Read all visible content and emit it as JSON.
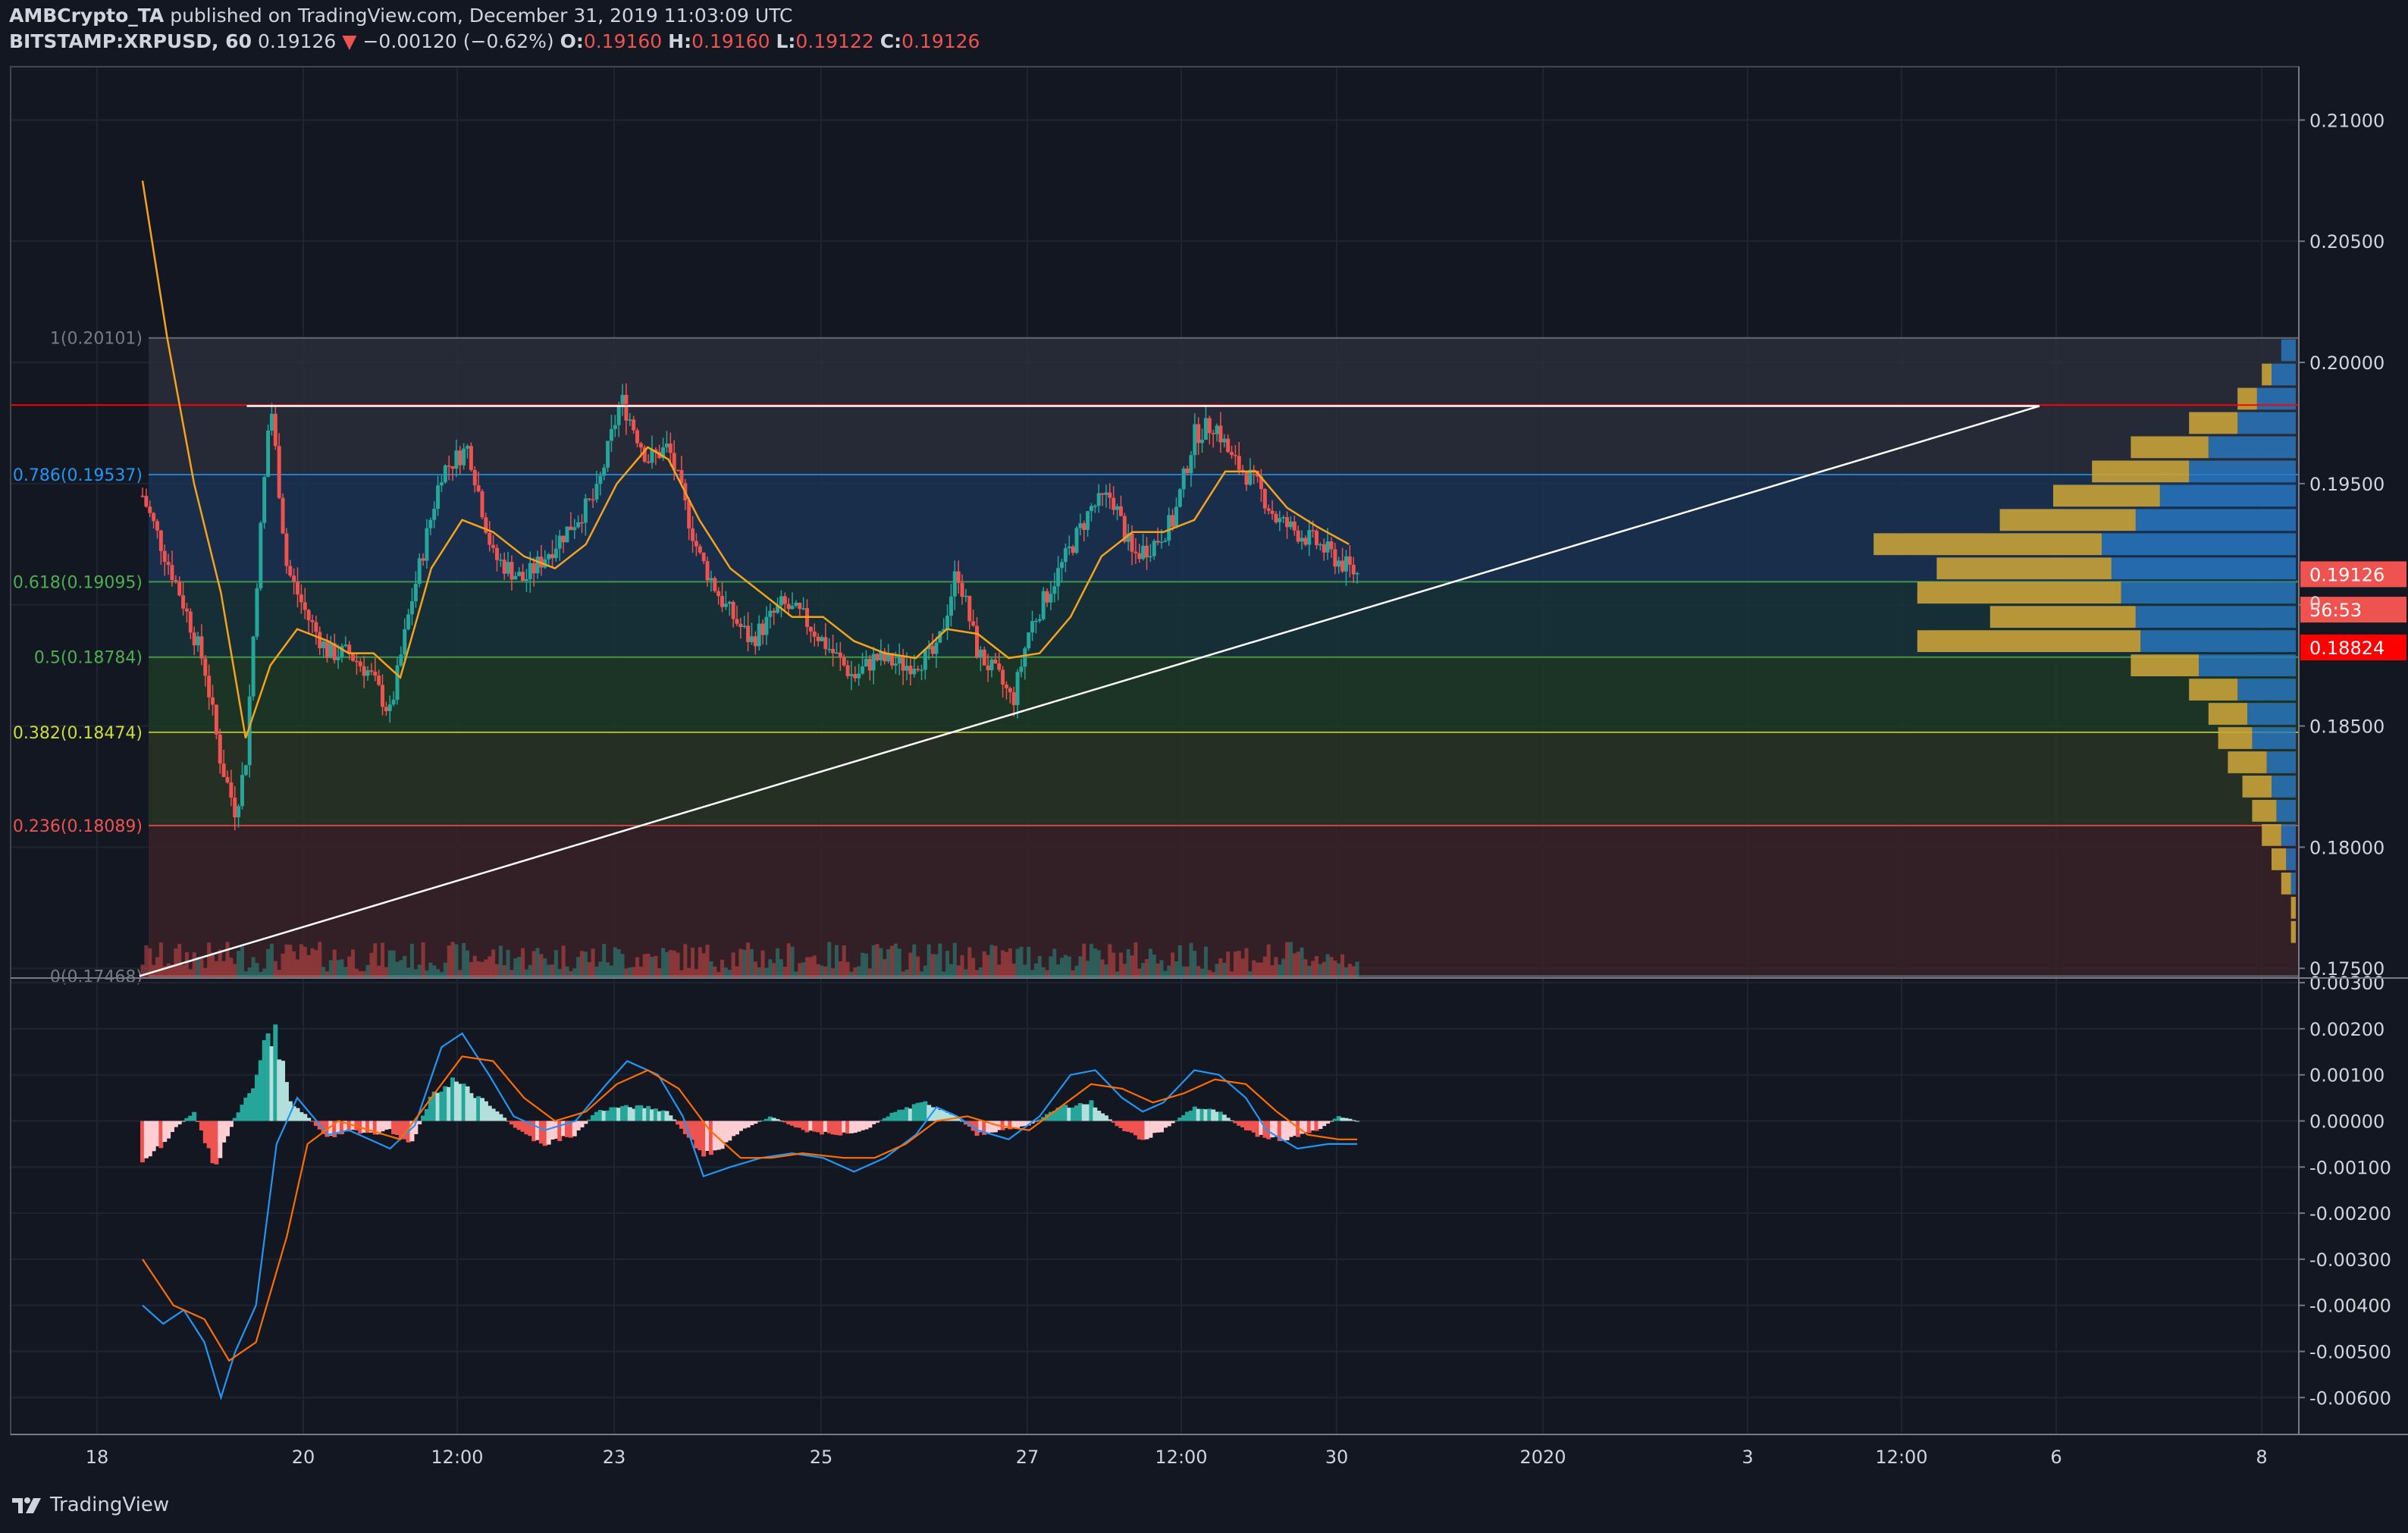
{
  "header": {
    "author": "AMBCrypto_TA",
    "published_text": "published on TradingView.com, December 31, 2019 11:03:09 UTC",
    "symbol": "BITSTAMP:XRPUSD, 60",
    "last": "0.19126",
    "change": "−0.00120 (−0.62%)",
    "o_label": "O:",
    "o_value": "0.19160",
    "h_label": "H:",
    "h_value": "0.19160",
    "l_label": "L:",
    "l_value": "0.19122",
    "c_label": "C:",
    "c_value": "0.19126"
  },
  "footer": {
    "logo_text": "TradingView"
  },
  "colors": {
    "background": "#131722",
    "up": "#26a69a",
    "down": "#ef5350",
    "ma": "#f7a21b",
    "macd": "#2196f3",
    "signal": "#ff6d00",
    "vp_up": "#2979c4",
    "vp_down": "#c8a23a",
    "trendline": "#ffffff"
  },
  "chart_data": [
    {
      "type": "candlestick",
      "symbol": "BITSTAMP:XRPUSD",
      "interval": "60",
      "x_tick_labels": [
        "18",
        "20",
        "12:00",
        "23",
        "25",
        "27",
        "12:00",
        "30",
        "2020",
        "3",
        "12:00",
        "6",
        "8"
      ],
      "y_tick_labels": [
        "0.21000",
        "0.20500",
        "0.20000",
        "0.19500",
        "0.19000",
        "0.18500",
        "0.18000",
        "0.17500"
      ],
      "ylim": [
        0.1746,
        0.2122
      ],
      "grid": true,
      "price_labels": [
        {
          "text": "0.19126",
          "value": 0.19126,
          "color": "#ef5350"
        },
        {
          "text": "56:53",
          "value": 0.1898,
          "color": "#ef5350"
        },
        {
          "text": "0.18824",
          "value": 0.18824,
          "color": "#ff0000"
        }
      ],
      "price_partial_label": "0.",
      "fib_levels": [
        {
          "ratio": "1",
          "value": 0.20101,
          "label": "1(0.20101)",
          "color": "#787b86"
        },
        {
          "ratio": "0.786",
          "value": 0.19537,
          "label": "0.786(0.19537)",
          "color": "#2196f3"
        },
        {
          "ratio": "0.618",
          "value": 0.19095,
          "label": "0.618(0.19095)",
          "color": "#4caf50"
        },
        {
          "ratio": "0.5",
          "value": 0.18784,
          "label": "0.5(0.18784)",
          "color": "#4caf50"
        },
        {
          "ratio": "0.382",
          "value": 0.18474,
          "label": "0.382(0.18474)",
          "color": "#cddc39"
        },
        {
          "ratio": "0.236",
          "value": 0.18089,
          "label": "0.236(0.18089)",
          "color": "#ef5350"
        },
        {
          "ratio": "0",
          "value": 0.17468,
          "label": "0(0.17468)",
          "color": "#787b86"
        }
      ],
      "horizontal_line": {
        "value": 0.19824,
        "color": "#ff0000"
      },
      "trendlines": [
        {
          "from": [
            0.0,
            0.17468
          ],
          "to": [
            5.89,
            0.1982
          ]
        },
        {
          "from": [
            0.52,
            0.1982
          ],
          "to": [
            5.89,
            0.1982
          ]
        }
      ],
      "close_path": [
        [
          0.0,
          0.1945
        ],
        [
          0.18,
          0.1905
        ],
        [
          0.3,
          0.1875
        ],
        [
          0.38,
          0.1835
        ],
        [
          0.45,
          0.1815
        ],
        [
          0.5,
          0.1835
        ],
        [
          0.55,
          0.1905
        ],
        [
          0.62,
          0.1985
        ],
        [
          0.7,
          0.1915
        ],
        [
          0.8,
          0.1895
        ],
        [
          0.9,
          0.188
        ],
        [
          1.0,
          0.188
        ],
        [
          1.1,
          0.1872
        ],
        [
          1.2,
          0.1855
        ],
        [
          1.3,
          0.19
        ],
        [
          1.45,
          0.1955
        ],
        [
          1.58,
          0.1965
        ],
        [
          1.7,
          0.192
        ],
        [
          1.85,
          0.191
        ],
        [
          2.0,
          0.1925
        ],
        [
          2.2,
          0.1945
        ],
        [
          2.32,
          0.1985
        ],
        [
          2.45,
          0.196
        ],
        [
          2.55,
          0.1965
        ],
        [
          2.7,
          0.192
        ],
        [
          2.82,
          0.19
        ],
        [
          2.95,
          0.1885
        ],
        [
          3.1,
          0.19
        ],
        [
          3.2,
          0.1895
        ],
        [
          3.3,
          0.1885
        ],
        [
          3.45,
          0.187
        ],
        [
          3.55,
          0.1878
        ],
        [
          3.7,
          0.1875
        ],
        [
          3.85,
          0.188
        ],
        [
          3.95,
          0.1915
        ],
        [
          4.05,
          0.188
        ],
        [
          4.15,
          0.187
        ],
        [
          4.22,
          0.186
        ],
        [
          4.3,
          0.189
        ],
        [
          4.45,
          0.1915
        ],
        [
          4.6,
          0.194
        ],
        [
          4.7,
          0.1945
        ],
        [
          4.8,
          0.192
        ],
        [
          4.9,
          0.1925
        ],
        [
          5.0,
          0.1935
        ],
        [
          5.1,
          0.197
        ],
        [
          5.2,
          0.1975
        ],
        [
          5.28,
          0.196
        ],
        [
          5.4,
          0.195
        ],
        [
          5.5,
          0.1935
        ],
        [
          5.6,
          0.193
        ],
        [
          5.7,
          0.1925
        ],
        [
          5.8,
          0.1918
        ],
        [
          5.89,
          0.19126
        ]
      ],
      "ma_path": [
        [
          0.0,
          0.2075
        ],
        [
          0.12,
          0.201
        ],
        [
          0.25,
          0.195
        ],
        [
          0.38,
          0.1905
        ],
        [
          0.5,
          0.1845
        ],
        [
          0.62,
          0.1875
        ],
        [
          0.75,
          0.189
        ],
        [
          0.9,
          0.1885
        ],
        [
          1.0,
          0.188
        ],
        [
          1.12,
          0.188
        ],
        [
          1.25,
          0.187
        ],
        [
          1.4,
          0.1915
        ],
        [
          1.55,
          0.1935
        ],
        [
          1.7,
          0.193
        ],
        [
          1.85,
          0.192
        ],
        [
          2.0,
          0.1915
        ],
        [
          2.15,
          0.1925
        ],
        [
          2.3,
          0.195
        ],
        [
          2.45,
          0.1965
        ],
        [
          2.55,
          0.196
        ],
        [
          2.7,
          0.1935
        ],
        [
          2.85,
          0.1915
        ],
        [
          3.0,
          0.1905
        ],
        [
          3.15,
          0.1895
        ],
        [
          3.3,
          0.1895
        ],
        [
          3.45,
          0.1885
        ],
        [
          3.6,
          0.188
        ],
        [
          3.75,
          0.1878
        ],
        [
          3.9,
          0.189
        ],
        [
          4.05,
          0.1888
        ],
        [
          4.2,
          0.1878
        ],
        [
          4.35,
          0.188
        ],
        [
          4.5,
          0.1895
        ],
        [
          4.65,
          0.192
        ],
        [
          4.8,
          0.193
        ],
        [
          4.95,
          0.193
        ],
        [
          5.1,
          0.1935
        ],
        [
          5.25,
          0.1955
        ],
        [
          5.4,
          0.1955
        ],
        [
          5.55,
          0.194
        ],
        [
          5.7,
          0.1932
        ],
        [
          5.85,
          0.1925
        ]
      ],
      "volume_profile": [
        {
          "price": 0.2005,
          "up": 0.03,
          "down": 0.0
        },
        {
          "price": 0.1995,
          "up": 0.05,
          "down": 0.02
        },
        {
          "price": 0.1985,
          "up": 0.08,
          "down": 0.04
        },
        {
          "price": 0.1975,
          "up": 0.12,
          "down": 0.1
        },
        {
          "price": 0.1965,
          "up": 0.18,
          "down": 0.16
        },
        {
          "price": 0.1955,
          "up": 0.22,
          "down": 0.2
        },
        {
          "price": 0.1945,
          "up": 0.28,
          "down": 0.22
        },
        {
          "price": 0.1935,
          "up": 0.33,
          "down": 0.28
        },
        {
          "price": 0.1925,
          "up": 0.4,
          "down": 0.47
        },
        {
          "price": 0.1915,
          "up": 0.38,
          "down": 0.36
        },
        {
          "price": 0.1905,
          "up": 0.36,
          "down": 0.42
        },
        {
          "price": 0.1895,
          "up": 0.33,
          "down": 0.3
        },
        {
          "price": 0.1885,
          "up": 0.32,
          "down": 0.46
        },
        {
          "price": 0.1875,
          "up": 0.2,
          "down": 0.14
        },
        {
          "price": 0.1865,
          "up": 0.12,
          "down": 0.1
        },
        {
          "price": 0.1855,
          "up": 0.1,
          "down": 0.08
        },
        {
          "price": 0.1845,
          "up": 0.09,
          "down": 0.07
        },
        {
          "price": 0.1835,
          "up": 0.06,
          "down": 0.08
        },
        {
          "price": 0.1825,
          "up": 0.05,
          "down": 0.06
        },
        {
          "price": 0.1815,
          "up": 0.04,
          "down": 0.05
        },
        {
          "price": 0.1805,
          "up": 0.03,
          "down": 0.04
        },
        {
          "price": 0.1795,
          "up": 0.02,
          "down": 0.03
        },
        {
          "price": 0.1785,
          "up": 0.01,
          "down": 0.02
        },
        {
          "price": 0.1775,
          "up": 0.0,
          "down": 0.01
        },
        {
          "price": 0.1765,
          "up": 0.0,
          "down": 0.01
        }
      ]
    },
    {
      "type": "macd",
      "y_tick_labels": [
        "0.00300",
        "0.00200",
        "0.00100",
        "0.00000",
        "-0.00100",
        "-0.00200",
        "-0.00300",
        "-0.00400",
        "-0.00500",
        "-0.00600"
      ],
      "ylim": [
        -0.0068,
        0.0031
      ],
      "macd_path": [
        [
          0.0,
          -0.004
        ],
        [
          0.1,
          -0.0044
        ],
        [
          0.2,
          -0.0041
        ],
        [
          0.3,
          -0.0048
        ],
        [
          0.38,
          -0.006
        ],
        [
          0.45,
          -0.005
        ],
        [
          0.55,
          -0.004
        ],
        [
          0.65,
          -0.0005
        ],
        [
          0.75,
          0.0005
        ],
        [
          0.9,
          -0.0003
        ],
        [
          1.0,
          -0.0002
        ],
        [
          1.1,
          -0.0004
        ],
        [
          1.2,
          -0.0006
        ],
        [
          1.32,
          -0.0001
        ],
        [
          1.45,
          0.0016
        ],
        [
          1.55,
          0.0019
        ],
        [
          1.68,
          0.001
        ],
        [
          1.8,
          0.0001
        ],
        [
          1.95,
          -0.0002
        ],
        [
          2.1,
          0.0
        ],
        [
          2.25,
          0.0008
        ],
        [
          2.35,
          0.0013
        ],
        [
          2.5,
          0.001
        ],
        [
          2.62,
          0.0001
        ],
        [
          2.72,
          -0.0012
        ],
        [
          2.85,
          -0.001
        ],
        [
          3.0,
          -0.0008
        ],
        [
          3.15,
          -0.0007
        ],
        [
          3.3,
          -0.0008
        ],
        [
          3.45,
          -0.0011
        ],
        [
          3.6,
          -0.0008
        ],
        [
          3.75,
          -0.0003
        ],
        [
          3.85,
          0.0003
        ],
        [
          3.95,
          0.0001
        ],
        [
          4.05,
          -0.0002
        ],
        [
          4.2,
          -0.0004
        ],
        [
          4.35,
          0.0001
        ],
        [
          4.5,
          0.001
        ],
        [
          4.62,
          0.0011
        ],
        [
          4.75,
          0.0005
        ],
        [
          4.85,
          0.0002
        ],
        [
          4.95,
          0.0004
        ],
        [
          5.1,
          0.0011
        ],
        [
          5.22,
          0.001
        ],
        [
          5.35,
          0.0005
        ],
        [
          5.45,
          -0.0002
        ],
        [
          5.6,
          -0.0006
        ],
        [
          5.75,
          -0.0005
        ],
        [
          5.89,
          -0.0005
        ]
      ],
      "signal_path": [
        [
          0.0,
          -0.003
        ],
        [
          0.15,
          -0.004
        ],
        [
          0.3,
          -0.0043
        ],
        [
          0.42,
          -0.0052
        ],
        [
          0.55,
          -0.0048
        ],
        [
          0.7,
          -0.0025
        ],
        [
          0.8,
          -0.0005
        ],
        [
          0.95,
          0.0
        ],
        [
          1.1,
          -0.0002
        ],
        [
          1.25,
          -0.0004
        ],
        [
          1.4,
          0.0005
        ],
        [
          1.55,
          0.0014
        ],
        [
          1.7,
          0.0013
        ],
        [
          1.85,
          0.0005
        ],
        [
          2.0,
          0.0
        ],
        [
          2.15,
          0.0002
        ],
        [
          2.3,
          0.0008
        ],
        [
          2.45,
          0.0011
        ],
        [
          2.6,
          0.0007
        ],
        [
          2.75,
          -0.0002
        ],
        [
          2.9,
          -0.0008
        ],
        [
          3.05,
          -0.0008
        ],
        [
          3.2,
          -0.0007
        ],
        [
          3.4,
          -0.0008
        ],
        [
          3.55,
          -0.0008
        ],
        [
          3.7,
          -0.0005
        ],
        [
          3.85,
          0.0
        ],
        [
          4.0,
          0.0001
        ],
        [
          4.15,
          -0.0001
        ],
        [
          4.3,
          -0.0002
        ],
        [
          4.45,
          0.0003
        ],
        [
          4.6,
          0.0008
        ],
        [
          4.75,
          0.0007
        ],
        [
          4.9,
          0.0004
        ],
        [
          5.05,
          0.0006
        ],
        [
          5.2,
          0.0009
        ],
        [
          5.35,
          0.0008
        ],
        [
          5.5,
          0.0002
        ],
        [
          5.65,
          -0.0003
        ],
        [
          5.8,
          -0.0004
        ],
        [
          5.89,
          -0.0004
        ]
      ],
      "histogram_envelope": [
        [
          0.0,
          -0.001
        ],
        [
          0.15,
          -0.0002
        ],
        [
          0.25,
          0.0002
        ],
        [
          0.35,
          -0.001
        ],
        [
          0.45,
          0.0001
        ],
        [
          0.55,
          0.0008
        ],
        [
          0.6,
          0.002
        ],
        [
          0.65,
          0.0018
        ],
        [
          0.72,
          0.0004
        ],
        [
          0.8,
          0.0001
        ],
        [
          0.9,
          -0.0004
        ],
        [
          1.0,
          -0.0002
        ],
        [
          1.1,
          -0.0003
        ],
        [
          1.2,
          -0.0002
        ],
        [
          1.3,
          -0.0005
        ],
        [
          1.4,
          0.0005
        ],
        [
          1.5,
          0.0009
        ],
        [
          1.6,
          0.0006
        ],
        [
          1.72,
          0.0002
        ],
        [
          1.85,
          -0.0003
        ],
        [
          1.95,
          -0.0005
        ],
        [
          2.1,
          -0.0003
        ],
        [
          2.2,
          0.0002
        ],
        [
          2.3,
          0.0003
        ],
        [
          2.45,
          0.0003
        ],
        [
          2.55,
          0.0002
        ],
        [
          2.65,
          -0.0004
        ],
        [
          2.75,
          -0.0008
        ],
        [
          2.9,
          -0.0002
        ],
        [
          3.05,
          0.0001
        ],
        [
          3.2,
          -0.0002
        ],
        [
          3.35,
          -0.0003
        ],
        [
          3.5,
          -0.0002
        ],
        [
          3.65,
          0.0002
        ],
        [
          3.8,
          0.0004
        ],
        [
          3.95,
          0.0001
        ],
        [
          4.05,
          -0.0003
        ],
        [
          4.15,
          -0.0002
        ],
        [
          4.3,
          -0.0001
        ],
        [
          4.45,
          0.0003
        ],
        [
          4.6,
          0.0004
        ],
        [
          4.75,
          -0.0002
        ],
        [
          4.85,
          -0.0004
        ],
        [
          4.95,
          -0.0002
        ],
        [
          5.1,
          0.0003
        ],
        [
          5.22,
          0.0002
        ],
        [
          5.35,
          -0.0002
        ],
        [
          5.45,
          -0.0004
        ],
        [
          5.55,
          -0.0004
        ],
        [
          5.7,
          -0.0002
        ],
        [
          5.8,
          0.0001
        ],
        [
          5.89,
          0.0
        ]
      ]
    }
  ]
}
